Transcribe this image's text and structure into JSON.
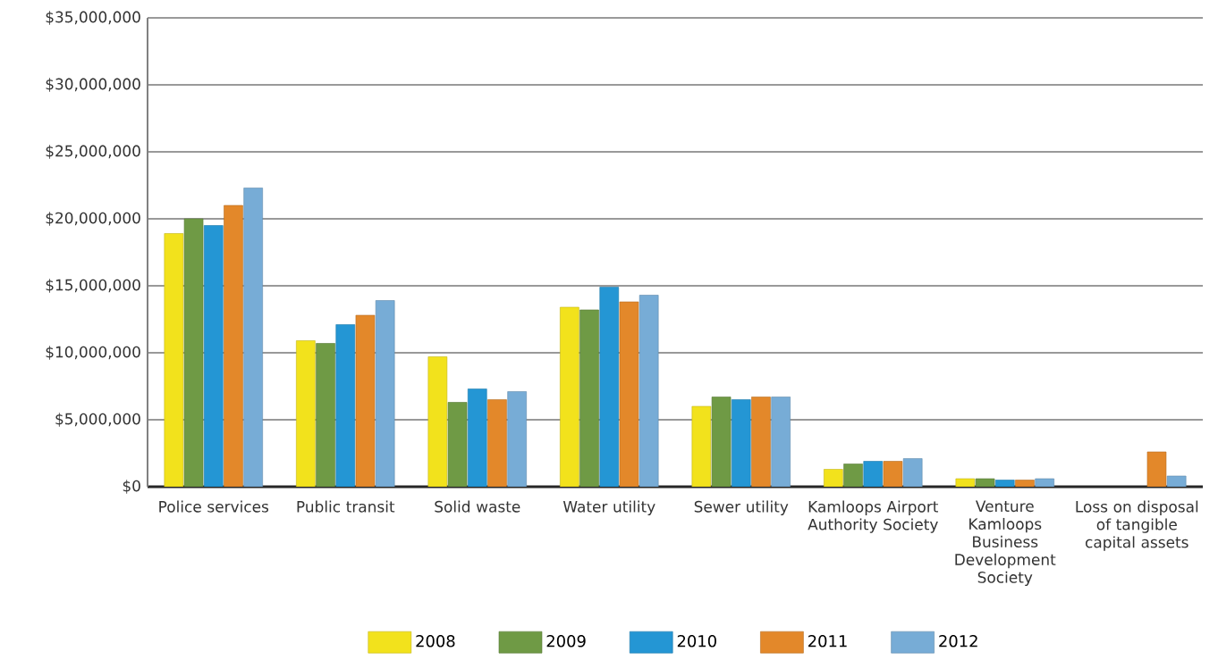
{
  "chart_data": {
    "type": "bar",
    "categories": [
      "Police services",
      "Public transit",
      "Solid waste",
      "Water utility",
      "Sewer utility",
      "Kamloops Airport Authority Society",
      "Venture Kamloops Business Development Society",
      "Loss on disposal of tangible capital assets"
    ],
    "series": [
      {
        "name": "2008",
        "color": "#f2e21c",
        "values": [
          18900000,
          10900000,
          9700000,
          13400000,
          6000000,
          1300000,
          600000,
          null
        ]
      },
      {
        "name": "2009",
        "color": "#6f9a45",
        "values": [
          20000000,
          10700000,
          6300000,
          13200000,
          6700000,
          1700000,
          600000,
          null
        ]
      },
      {
        "name": "2010",
        "color": "#2496d4",
        "values": [
          19500000,
          12100000,
          7300000,
          14900000,
          6500000,
          1900000,
          500000,
          null
        ]
      },
      {
        "name": "2011",
        "color": "#e3882a",
        "values": [
          21000000,
          12800000,
          6500000,
          13800000,
          6700000,
          1900000,
          500000,
          2600000
        ]
      },
      {
        "name": "2012",
        "color": "#77acd6",
        "values": [
          22300000,
          13900000,
          7100000,
          14300000,
          6700000,
          2100000,
          600000,
          800000
        ]
      }
    ],
    "ylim": [
      0,
      35000000
    ],
    "yticks": [
      {
        "value": 0,
        "label": "$0"
      },
      {
        "value": 5000000,
        "label": "$5,000,000"
      },
      {
        "value": 10000000,
        "label": "$10,000,000"
      },
      {
        "value": 15000000,
        "label": "$15,000,000"
      },
      {
        "value": 20000000,
        "label": "$20,000,000"
      },
      {
        "value": 25000000,
        "label": "$25,000,000"
      },
      {
        "value": 30000000,
        "label": "$30,000,000"
      },
      {
        "value": 35000000,
        "label": "$35,000,000"
      }
    ],
    "grid": "y",
    "legend": "bottom"
  }
}
